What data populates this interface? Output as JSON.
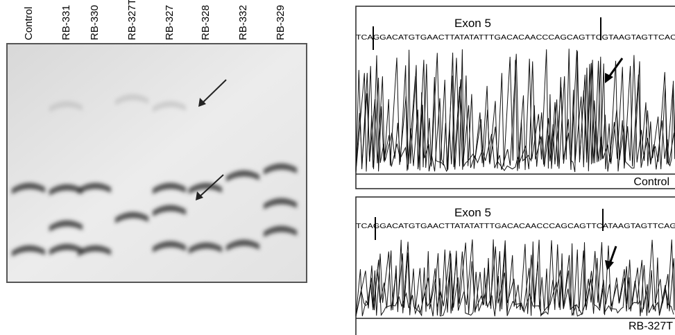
{
  "gel": {
    "lanes": [
      "Control",
      "RB-331",
      "RB-330",
      "RB-327T",
      "RB-327",
      "RB-328",
      "RB-332",
      "RB-329"
    ]
  },
  "chromatograms": [
    {
      "title": "Exon 5",
      "sequence": "TCAGGACATGTGAACTTATATATTTGACACAACCCAGCAGTTCGTAAGTAGTTCAC",
      "label": "Control"
    },
    {
      "title": "Exon 5",
      "sequence": "TCAGGACATGTGAACTTATATATTTGACACAACCCAGCAGTTCATAAGTAGTTCAG",
      "label": "RB-327T"
    }
  ]
}
